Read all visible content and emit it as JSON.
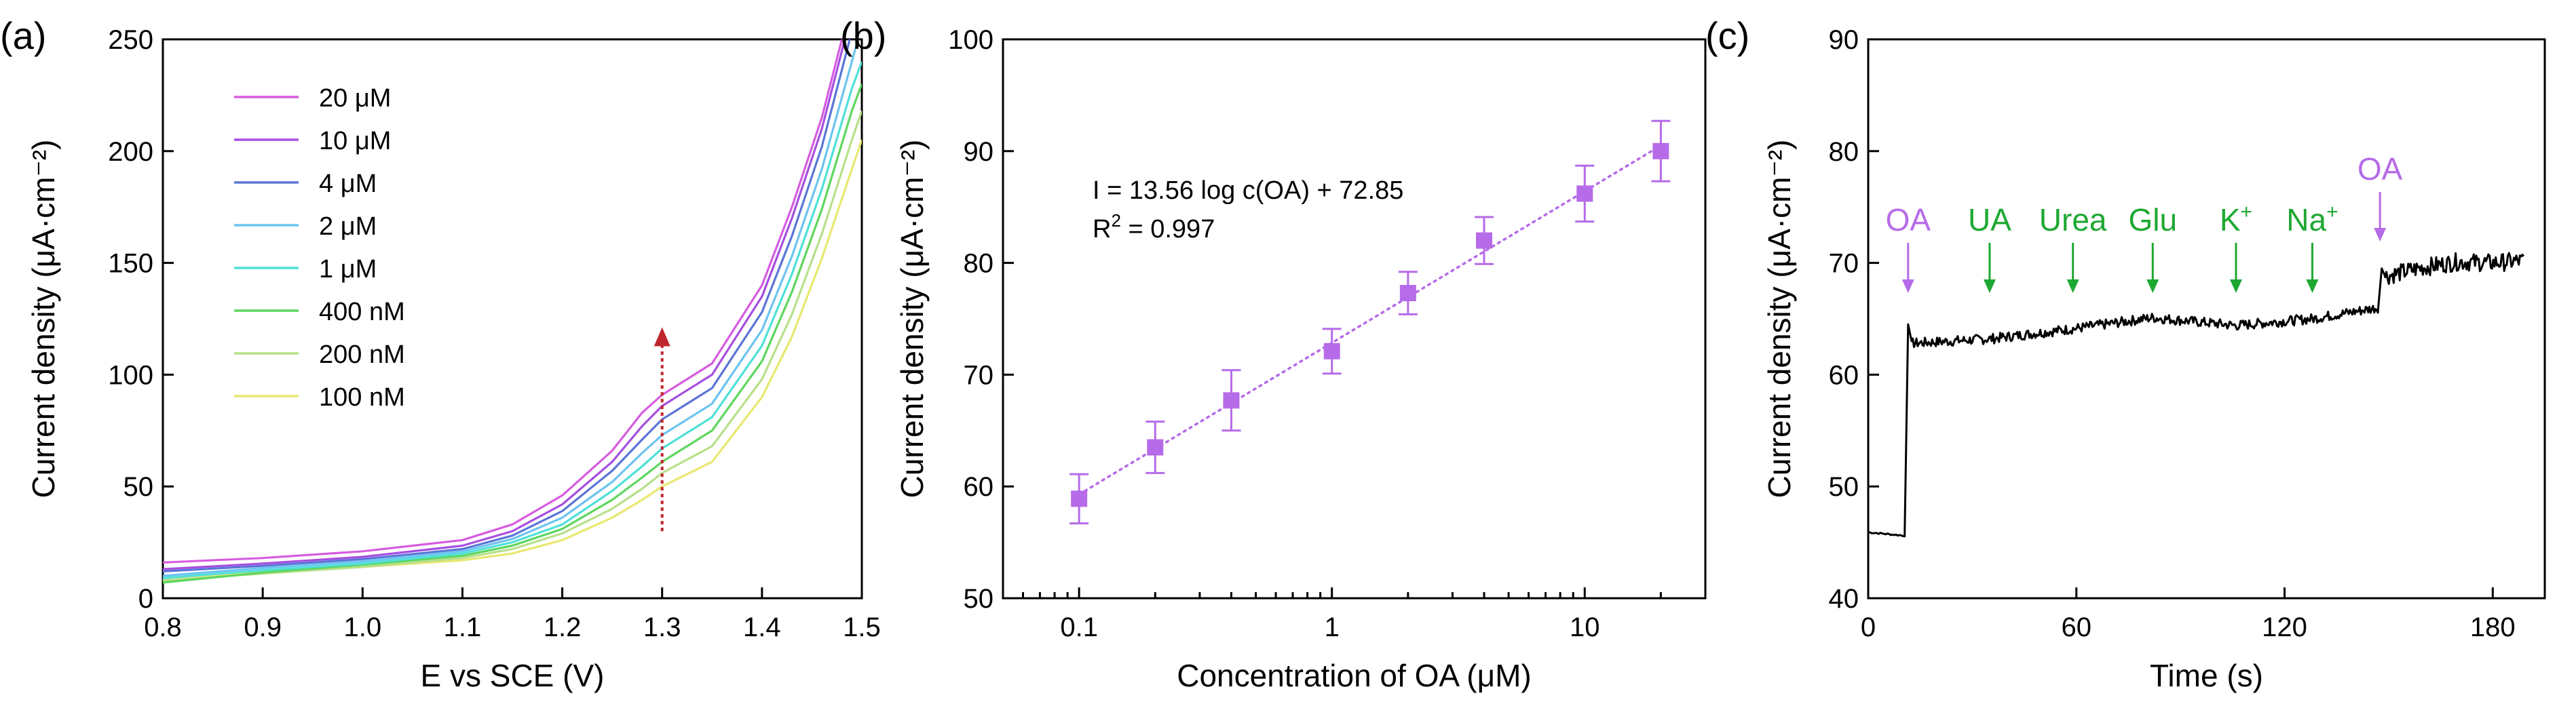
{
  "chart_data": [
    {
      "panel": "(a)",
      "type": "line",
      "xlabel": "E vs SCE (V)",
      "ylabel": "Current density (μA·cm⁻²)",
      "xlim": [
        0.8,
        1.5
      ],
      "ylim": [
        0,
        250
      ],
      "xticks": [
        "0.8",
        "0.9",
        "1.0",
        "1.1",
        "1.2",
        "1.3",
        "1.4",
        "1.5"
      ],
      "yticks": [
        "0",
        "50",
        "100",
        "150",
        "200",
        "250"
      ],
      "arrow": {
        "x": 1.3,
        "y_from": 30,
        "y_to": 120,
        "color": "#c0262d"
      },
      "series": [
        {
          "name": "20 μM",
          "color": "#d65ce0",
          "x": [
            0.8,
            0.9,
            1.0,
            1.1,
            1.15,
            1.2,
            1.25,
            1.28,
            1.3,
            1.35,
            1.4,
            1.43,
            1.46,
            1.48
          ],
          "y": [
            16,
            18,
            21,
            26,
            33,
            46,
            66,
            83,
            91,
            105,
            140,
            175,
            215,
            250
          ]
        },
        {
          "name": "10 μM",
          "color": "#a64fe0",
          "x": [
            0.8,
            0.9,
            1.0,
            1.1,
            1.15,
            1.2,
            1.25,
            1.28,
            1.3,
            1.35,
            1.4,
            1.43,
            1.46,
            1.483
          ],
          "y": [
            13,
            15.5,
            18.5,
            23.5,
            30,
            42,
            61,
            77,
            86,
            100,
            135,
            170,
            210,
            250
          ]
        },
        {
          "name": "4 μM",
          "color": "#5a75d6",
          "x": [
            0.8,
            0.9,
            1.0,
            1.1,
            1.15,
            1.2,
            1.25,
            1.28,
            1.3,
            1.35,
            1.4,
            1.43,
            1.46,
            1.488
          ],
          "y": [
            12,
            14.5,
            17.5,
            22,
            28,
            39,
            57,
            71,
            80,
            94,
            128,
            162,
            202,
            250
          ]
        },
        {
          "name": "2 μM",
          "color": "#6cc4f0",
          "x": [
            0.8,
            0.9,
            1.0,
            1.1,
            1.15,
            1.2,
            1.25,
            1.28,
            1.3,
            1.35,
            1.4,
            1.43,
            1.46,
            1.49,
            1.495
          ],
          "y": [
            10,
            13.5,
            16.5,
            21,
            26.5,
            36,
            52,
            65,
            73,
            87,
            120,
            153,
            192,
            240,
            248
          ]
        },
        {
          "name": "1 μM",
          "color": "#4fe0d8",
          "x": [
            0.8,
            0.9,
            1.0,
            1.1,
            1.15,
            1.2,
            1.25,
            1.28,
            1.3,
            1.35,
            1.4,
            1.43,
            1.46,
            1.49,
            1.5
          ],
          "y": [
            9,
            12.5,
            15.5,
            20,
            25,
            33,
            48,
            59,
            67,
            81,
            113,
            145,
            183,
            228,
            240
          ]
        },
        {
          "name": "400 nM",
          "color": "#5ed65e",
          "x": [
            0.8,
            0.9,
            1.0,
            1.1,
            1.15,
            1.2,
            1.25,
            1.28,
            1.3,
            1.35,
            1.4,
            1.43,
            1.46,
            1.49,
            1.5
          ],
          "y": [
            7,
            11.5,
            15,
            19,
            23.5,
            31,
            44,
            54,
            61,
            75,
            106,
            137,
            174,
            218,
            230
          ]
        },
        {
          "name": "200 nM",
          "color": "#b8e08a",
          "x": [
            0.8,
            0.9,
            1.0,
            1.1,
            1.15,
            1.2,
            1.25,
            1.28,
            1.3,
            1.35,
            1.4,
            1.43,
            1.46,
            1.49,
            1.5
          ],
          "y": [
            8,
            11,
            14,
            18,
            22,
            29,
            40,
            49,
            56,
            68,
            98,
            127,
            163,
            205,
            218
          ]
        },
        {
          "name": "100 nM",
          "color": "#e8e870",
          "x": [
            0.8,
            0.9,
            1.0,
            1.1,
            1.15,
            1.2,
            1.25,
            1.28,
            1.3,
            1.35,
            1.4,
            1.43,
            1.46,
            1.49,
            1.5
          ],
          "y": [
            9,
            12,
            14,
            17,
            20,
            26,
            36,
            44,
            50,
            61,
            90,
            117,
            152,
            192,
            205
          ]
        }
      ]
    },
    {
      "panel": "(b)",
      "type": "scatter",
      "xscale": "log",
      "xlabel": "Concentration of OA (μM)",
      "ylabel": "Current density (μA·cm⁻²)",
      "xlim": [
        0.05,
        30
      ],
      "ylim": [
        50,
        100
      ],
      "xticks": [
        "0.1",
        "1",
        "10"
      ],
      "yticks": [
        "50",
        "60",
        "70",
        "80",
        "90",
        "100"
      ],
      "color": "#b66be8",
      "x": [
        0.1,
        0.2,
        0.4,
        1,
        2,
        4,
        10,
        20
      ],
      "y": [
        58.9,
        63.5,
        67.7,
        72.1,
        77.3,
        82.0,
        86.2,
        90.0
      ],
      "err": [
        2.2,
        2.3,
        2.7,
        2.0,
        1.9,
        2.1,
        2.5,
        2.7
      ],
      "fit": {
        "slope": 13.56,
        "intercept": 72.85
      },
      "equation_text": "I = 13.56 log c(OA) + 72.85",
      "r2_base": "R",
      "r2_sup": "2",
      "r2_value": " = 0.997"
    },
    {
      "panel": "(c)",
      "type": "line",
      "xlabel": "Time (s)",
      "ylabel": "Current density (μA·cm⁻²)",
      "xlim": [
        0,
        195
      ],
      "ylim": [
        40,
        90
      ],
      "xticks": [
        "0",
        "60",
        "120",
        "180"
      ],
      "yticks": [
        "40",
        "50",
        "60",
        "70",
        "80",
        "90"
      ],
      "color": "#000000",
      "baseline": {
        "x": [
          0,
          10.5
        ],
        "y": [
          45.9,
          45.6
        ]
      },
      "jump": {
        "x": [
          10.5,
          11.5,
          12.5
        ],
        "y": [
          45.6,
          64.5,
          63.0
        ]
      },
      "trend": {
        "x": [
          12.5,
          35,
          59,
          82,
          106,
          128,
          147
        ],
        "y": [
          62.8,
          63.2,
          64.1,
          65.1,
          64.4,
          65.0,
          66.0
        ]
      },
      "jump2": {
        "x": [
          147,
          148,
          149
        ],
        "y": [
          66.0,
          69.5,
          68.8
        ]
      },
      "trend2": {
        "x": [
          149,
          160,
          170,
          180,
          189
        ],
        "y": [
          68.8,
          69.6,
          70.1,
          70.0,
          70.2
        ]
      },
      "events": [
        {
          "label": "OA",
          "sup": "",
          "t": 11.5,
          "color": "#b66be8"
        },
        {
          "label": "UA",
          "sup": "",
          "t": 35,
          "color": "#1ea832"
        },
        {
          "label": "Urea",
          "sup": "",
          "t": 59,
          "color": "#1ea832"
        },
        {
          "label": "Glu",
          "sup": "",
          "t": 82,
          "color": "#1ea832"
        },
        {
          "label": "K",
          "sup": "+",
          "t": 106,
          "color": "#1ea832"
        },
        {
          "label": "Na",
          "sup": "+",
          "t": 128,
          "color": "#1ea832"
        },
        {
          "label": "OA",
          "sup": "",
          "t": 147.5,
          "color": "#b66be8"
        }
      ]
    }
  ]
}
